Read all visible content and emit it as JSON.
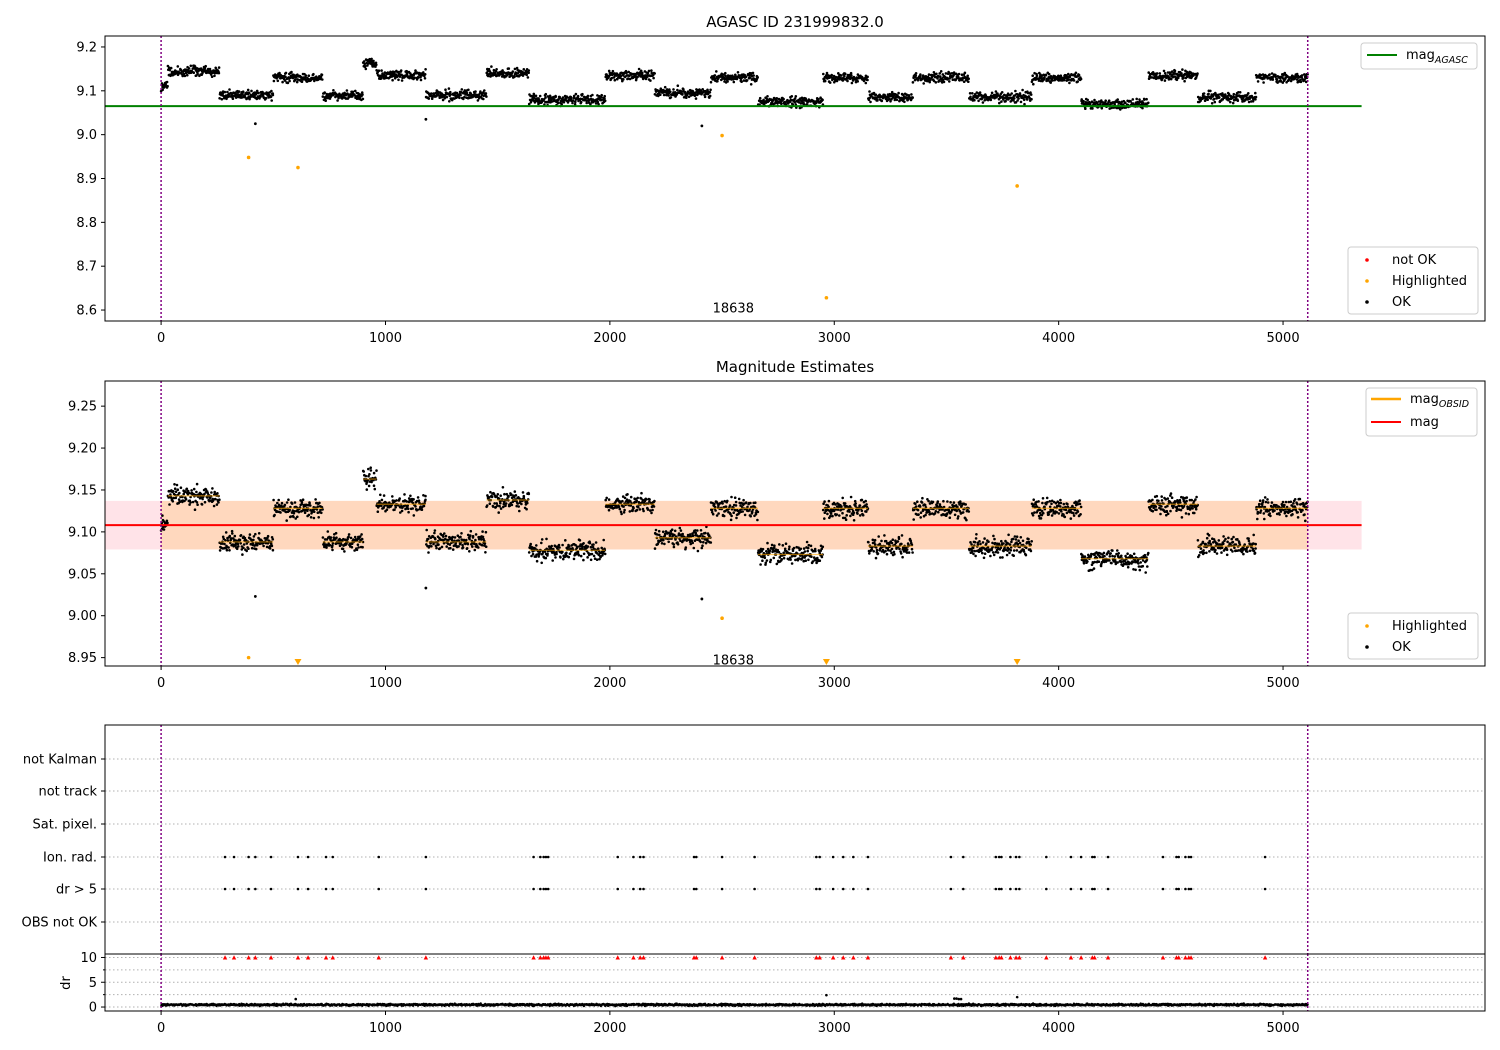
{
  "chart_data": [
    {
      "type": "scatter",
      "title": "AGASC ID 231999832.0",
      "xlim": [
        -250,
        5900
      ],
      "ylim": [
        8.575,
        9.225
      ],
      "x_ticks": [
        "0",
        "1000",
        "2000",
        "3000",
        "4000",
        "5000"
      ],
      "y_ticks": [
        "8.6",
        "8.7",
        "8.8",
        "8.9",
        "9.0",
        "9.1",
        "9.2"
      ],
      "vlines": [
        0,
        5110
      ],
      "annotation": {
        "text": "18638",
        "x": 2550,
        "y": 8.595
      },
      "ok_base": 9.11,
      "reference_line": {
        "name": "mag_AGASC",
        "y": 9.065,
        "x_range": [
          -250,
          5350
        ],
        "color": "#008000"
      },
      "highlighted_points": [
        {
          "x": 390,
          "y": 8.948
        },
        {
          "x": 610,
          "y": 8.925
        },
        {
          "x": 2500,
          "y": 8.998
        },
        {
          "x": 2965,
          "y": 8.628
        },
        {
          "x": 3815,
          "y": 8.883
        }
      ],
      "outlier_points": [
        {
          "x": 420,
          "y": 9.025
        },
        {
          "x": 1180,
          "y": 9.035
        },
        {
          "x": 2410,
          "y": 9.02
        }
      ],
      "ok_segments": [
        {
          "x0": 0,
          "x1": 30,
          "offset": 0.0
        },
        {
          "x0": 30,
          "x1": 260,
          "offset": 0.035
        },
        {
          "x0": 260,
          "x1": 500,
          "offset": -0.02
        },
        {
          "x0": 500,
          "x1": 720,
          "offset": 0.02
        },
        {
          "x0": 720,
          "x1": 900,
          "offset": -0.02
        },
        {
          "x0": 900,
          "x1": 960,
          "offset": 0.055
        },
        {
          "x0": 960,
          "x1": 1180,
          "offset": 0.025
        },
        {
          "x0": 1180,
          "x1": 1450,
          "offset": -0.02
        },
        {
          "x0": 1450,
          "x1": 1640,
          "offset": 0.03
        },
        {
          "x0": 1640,
          "x1": 1980,
          "offset": -0.03
        },
        {
          "x0": 1980,
          "x1": 2200,
          "offset": 0.025
        },
        {
          "x0": 2200,
          "x1": 2450,
          "offset": -0.015
        },
        {
          "x0": 2450,
          "x1": 2660,
          "offset": 0.02
        },
        {
          "x0": 2660,
          "x1": 2950,
          "offset": -0.035
        },
        {
          "x0": 2950,
          "x1": 3150,
          "offset": 0.02
        },
        {
          "x0": 3150,
          "x1": 3350,
          "offset": -0.025
        },
        {
          "x0": 3350,
          "x1": 3600,
          "offset": 0.02
        },
        {
          "x0": 3600,
          "x1": 3880,
          "offset": -0.025
        },
        {
          "x0": 3880,
          "x1": 4100,
          "offset": 0.02
        },
        {
          "x0": 4100,
          "x1": 4400,
          "offset": -0.04
        },
        {
          "x0": 4400,
          "x1": 4620,
          "offset": 0.025
        },
        {
          "x0": 4620,
          "x1": 4880,
          "offset": -0.025
        },
        {
          "x0": 4880,
          "x1": 5110,
          "offset": 0.02
        }
      ],
      "legend_upper": {
        "position": "upper right",
        "entries": [
          {
            "label": "mag",
            "subscript": "AGASC",
            "color": "#008000"
          }
        ]
      },
      "legend_lower": {
        "position": "lower right",
        "entries": [
          {
            "label": "not OK",
            "color": "#ff0000"
          },
          {
            "label": "Highlighted",
            "color": "#ffa500"
          },
          {
            "label": "OK",
            "color": "#000000"
          }
        ]
      }
    },
    {
      "type": "scatter",
      "title": "Magnitude Estimates",
      "xlim": [
        -250,
        5900
      ],
      "ylim": [
        8.94,
        9.28
      ],
      "x_ticks": [
        "0",
        "1000",
        "2000",
        "3000",
        "4000",
        "5000"
      ],
      "y_ticks": [
        "8.95",
        "9.00",
        "9.05",
        "9.10",
        "9.15",
        "9.20",
        "9.25"
      ],
      "vlines": [
        0,
        5110
      ],
      "annotation": {
        "text": "18638",
        "x": 2550,
        "y": 8.95
      },
      "mag_line": {
        "name": "mag",
        "y": 9.108,
        "x_range": [
          -250,
          5350
        ],
        "color": "#ff0000"
      },
      "mag_band": {
        "y0": 9.079,
        "y1": 9.137,
        "x_range": [
          -250,
          5350
        ]
      },
      "mag_obsid_segments": [
        {
          "x0": 0,
          "x1": 30,
          "y": 9.108
        },
        {
          "x0": 30,
          "x1": 260,
          "y": 9.143
        },
        {
          "x0": 260,
          "x1": 500,
          "y": 9.088
        },
        {
          "x0": 500,
          "x1": 720,
          "y": 9.128
        },
        {
          "x0": 720,
          "x1": 900,
          "y": 9.088
        },
        {
          "x0": 900,
          "x1": 960,
          "y": 9.163
        },
        {
          "x0": 960,
          "x1": 1180,
          "y": 9.133
        },
        {
          "x0": 1180,
          "x1": 1450,
          "y": 9.088
        },
        {
          "x0": 1450,
          "x1": 1640,
          "y": 9.138
        },
        {
          "x0": 1640,
          "x1": 1980,
          "y": 9.078
        },
        {
          "x0": 1980,
          "x1": 2200,
          "y": 9.133
        },
        {
          "x0": 2200,
          "x1": 2450,
          "y": 9.093
        },
        {
          "x0": 2450,
          "x1": 2660,
          "y": 9.128
        },
        {
          "x0": 2660,
          "x1": 2950,
          "y": 9.073
        },
        {
          "x0": 2950,
          "x1": 3150,
          "y": 9.128
        },
        {
          "x0": 3150,
          "x1": 3350,
          "y": 9.083
        },
        {
          "x0": 3350,
          "x1": 3600,
          "y": 9.128
        },
        {
          "x0": 3600,
          "x1": 3880,
          "y": 9.083
        },
        {
          "x0": 3880,
          "x1": 4100,
          "y": 9.128
        },
        {
          "x0": 4100,
          "x1": 4400,
          "y": 9.068
        },
        {
          "x0": 4400,
          "x1": 4620,
          "y": 9.133
        },
        {
          "x0": 4620,
          "x1": 4880,
          "y": 9.083
        },
        {
          "x0": 4880,
          "x1": 5110,
          "y": 9.128
        }
      ],
      "highlighted_points": [
        {
          "x": 390,
          "y": 8.95
        },
        {
          "x": 2500,
          "y": 8.997
        }
      ],
      "highlighted_offscale_points": [
        {
          "x": 610,
          "y": 8.943
        },
        {
          "x": 2965,
          "y": 8.943
        },
        {
          "x": 3815,
          "y": 8.943
        }
      ],
      "outlier_points": [
        {
          "x": 420,
          "y": 9.023
        },
        {
          "x": 1180,
          "y": 9.033
        },
        {
          "x": 2410,
          "y": 9.02
        }
      ],
      "legend_upper": {
        "position": "upper right",
        "entries": [
          {
            "label": "mag",
            "subscript": "OBSID",
            "color": "#ffa500"
          },
          {
            "label": "mag",
            "color": "#ff0000"
          }
        ]
      },
      "legend_lower": {
        "position": "lower right",
        "entries": [
          {
            "label": "Highlighted",
            "color": "#ffa500"
          },
          {
            "label": "OK",
            "color": "#000000"
          }
        ]
      }
    },
    {
      "type": "scatter",
      "xlim": [
        -250,
        5900
      ],
      "categories": [
        "not Kalman",
        "not track",
        "Sat. pixel.",
        "Ion. rad.",
        "dr > 5",
        "OBS not OK"
      ],
      "flag_x": [
        285,
        325,
        390,
        420,
        490,
        610,
        655,
        735,
        765,
        970,
        1180,
        1660,
        1690,
        1705,
        1715,
        1725,
        2035,
        2105,
        2135,
        2150,
        2375,
        2385,
        2500,
        2645,
        2920,
        2935,
        2995,
        3040,
        3085,
        3150,
        3520,
        3575,
        3720,
        3735,
        3745,
        3785,
        3810,
        3825,
        3945,
        4055,
        4100,
        4150,
        4160,
        4220,
        4465,
        4525,
        4535,
        4565,
        4580,
        4590,
        4920
      ],
      "flagged_categories": [
        "Ion. rad.",
        "dr > 5"
      ],
      "vlines": [
        0,
        5110
      ]
    },
    {
      "type": "scatter",
      "ylabel": "dr",
      "xlim": [
        -250,
        5900
      ],
      "ylim": [
        -0.8,
        10.7
      ],
      "x_ticks": [
        "0",
        "1000",
        "2000",
        "3000",
        "4000",
        "5000"
      ],
      "y_ticks": [
        "0",
        "5",
        "10"
      ],
      "dr_base": 0.45,
      "dr_outliers": [
        {
          "x": 600,
          "y": 1.6
        },
        {
          "x": 2965,
          "y": 2.4
        },
        {
          "x": 3815,
          "y": 2.0
        },
        {
          "x": 3535,
          "y": 1.7
        },
        {
          "x": 3545,
          "y": 1.7
        },
        {
          "x": 3555,
          "y": 1.6
        },
        {
          "x": 3565,
          "y": 1.6
        }
      ],
      "marker_y": 10,
      "vlines": [
        0,
        5110
      ]
    }
  ]
}
